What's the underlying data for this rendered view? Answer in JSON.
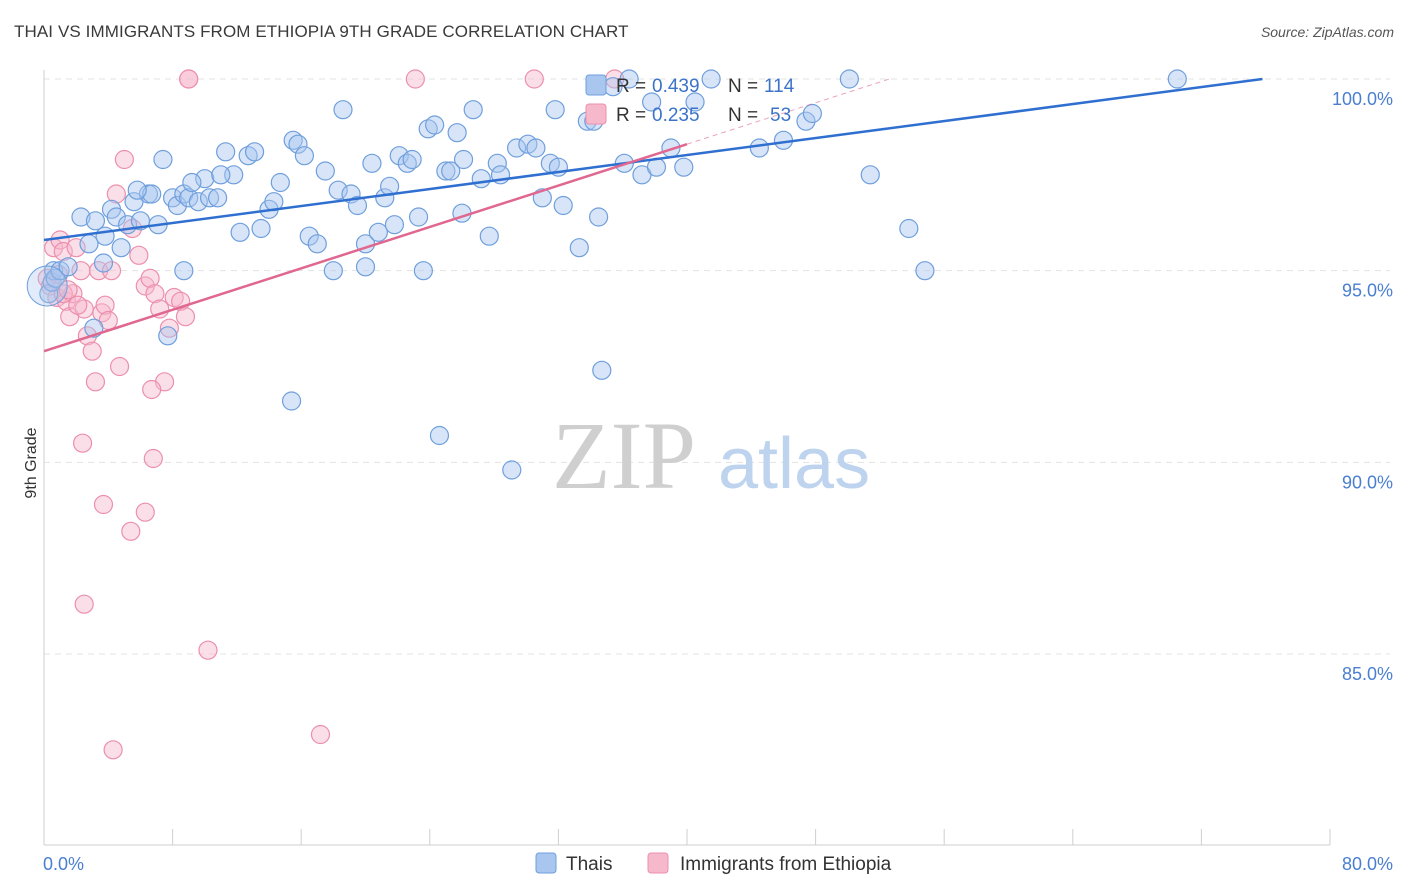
{
  "header": {
    "title": "THAI VS IMMIGRANTS FROM ETHIOPIA 9TH GRADE CORRELATION CHART",
    "source": "Source: ZipAtlas.com"
  },
  "watermark": {
    "zip": "ZIP",
    "atlas": "atlas"
  },
  "colors": {
    "blue_fill": "#a9c6ef",
    "blue_stroke": "#6f9fdc",
    "blue_line": "#2f6fd0",
    "pink_fill": "#f6b9cc",
    "pink_stroke": "#ec8fad",
    "pink_line": "#e06890",
    "grid": "#e3e3e3",
    "tick_label": "#4a7fd0"
  },
  "legend": {
    "rows": [
      {
        "r_label": "R = ",
        "r_value": "0.439",
        "n_label": "N = ",
        "n_value": "114"
      },
      {
        "r_label": "R = ",
        "r_value": "0.235",
        "n_label": "N = ",
        "n_value": "53"
      }
    ]
  },
  "bottom_legend": {
    "thais": "Thais",
    "ethiopia": "Immigrants from Ethiopia"
  },
  "chart_data": {
    "type": "scatter",
    "title": "THAI VS IMMIGRANTS FROM ETHIOPIA 9TH GRADE CORRELATION CHART",
    "xlabel": "",
    "ylabel": "9th Grade",
    "xlim": [
      0,
      80
    ],
    "ylim": [
      80,
      100.5
    ],
    "x_tick_labels": [
      "0.0%",
      "80.0%"
    ],
    "y_ticks": [
      85,
      90,
      95,
      100
    ],
    "y_tick_labels": [
      "85.0%",
      "90.0%",
      "95.0%",
      "100.0%"
    ],
    "grid": true,
    "legend_position": "top-center",
    "series": [
      {
        "name": "Thais",
        "R": 0.439,
        "N": 114,
        "trend": {
          "x": [
            0,
            75.8
          ],
          "y": [
            95.8,
            100.0
          ]
        },
        "points": [
          [
            0.3,
            94.4
          ],
          [
            0.5,
            94.7
          ],
          [
            0.6,
            95.0
          ],
          [
            0.7,
            94.8
          ],
          [
            1.0,
            95.0
          ],
          [
            1.5,
            95.1
          ],
          [
            2.3,
            96.4
          ],
          [
            2.8,
            95.7
          ],
          [
            3.2,
            96.3
          ],
          [
            3.8,
            95.9
          ],
          [
            4.2,
            96.6
          ],
          [
            4.5,
            96.4
          ],
          [
            4.8,
            95.6
          ],
          [
            5.2,
            96.2
          ],
          [
            5.6,
            96.8
          ],
          [
            6.0,
            96.3
          ],
          [
            6.5,
            97.0
          ],
          [
            6.7,
            97.0
          ],
          [
            7.1,
            96.2
          ],
          [
            7.4,
            97.9
          ],
          [
            8.0,
            96.9
          ],
          [
            8.3,
            96.7
          ],
          [
            8.7,
            97.0
          ],
          [
            9.0,
            96.9
          ],
          [
            9.6,
            96.8
          ],
          [
            10.0,
            97.4
          ],
          [
            10.3,
            96.9
          ],
          [
            10.8,
            96.9
          ],
          [
            11.3,
            98.1
          ],
          [
            11.8,
            97.5
          ],
          [
            12.2,
            96.0
          ],
          [
            12.7,
            98.0
          ],
          [
            13.1,
            98.1
          ],
          [
            13.5,
            96.1
          ],
          [
            14.0,
            96.6
          ],
          [
            14.3,
            96.8
          ],
          [
            14.7,
            97.3
          ],
          [
            15.5,
            98.4
          ],
          [
            15.8,
            98.3
          ],
          [
            16.2,
            98.0
          ],
          [
            16.5,
            95.9
          ],
          [
            17.0,
            95.7
          ],
          [
            17.5,
            97.6
          ],
          [
            18.0,
            95.0
          ],
          [
            18.3,
            97.1
          ],
          [
            18.6,
            99.2
          ],
          [
            19.1,
            97.0
          ],
          [
            19.5,
            96.7
          ],
          [
            20.0,
            95.7
          ],
          [
            20.4,
            97.8
          ],
          [
            20.8,
            96.0
          ],
          [
            21.2,
            96.9
          ],
          [
            21.5,
            97.2
          ],
          [
            21.8,
            96.2
          ],
          [
            22.1,
            98.0
          ],
          [
            22.6,
            97.8
          ],
          [
            22.9,
            97.9
          ],
          [
            23.3,
            96.4
          ],
          [
            23.6,
            95.0
          ],
          [
            23.9,
            98.7
          ],
          [
            24.3,
            98.8
          ],
          [
            25.0,
            97.6
          ],
          [
            25.3,
            97.6
          ],
          [
            25.7,
            98.6
          ],
          [
            26.1,
            97.9
          ],
          [
            26.7,
            99.2
          ],
          [
            27.2,
            97.4
          ],
          [
            27.7,
            95.9
          ],
          [
            28.2,
            97.8
          ],
          [
            28.4,
            97.5
          ],
          [
            29.4,
            98.2
          ],
          [
            30.1,
            98.3
          ],
          [
            30.6,
            98.2
          ],
          [
            31.0,
            96.9
          ],
          [
            31.5,
            97.8
          ],
          [
            32.0,
            97.7
          ],
          [
            32.3,
            96.7
          ],
          [
            33.3,
            95.6
          ],
          [
            33.8,
            98.9
          ],
          [
            34.2,
            98.9
          ],
          [
            34.5,
            96.4
          ],
          [
            35.4,
            99.8
          ],
          [
            36.1,
            97.8
          ],
          [
            36.4,
            100.0
          ],
          [
            37.2,
            97.5
          ],
          [
            37.8,
            99.4
          ],
          [
            38.1,
            97.7
          ],
          [
            39.0,
            98.2
          ],
          [
            39.8,
            97.7
          ],
          [
            40.5,
            99.4
          ],
          [
            41.5,
            100.0
          ],
          [
            44.5,
            98.2
          ],
          [
            46.0,
            98.4
          ],
          [
            47.4,
            98.9
          ],
          [
            47.8,
            99.1
          ],
          [
            50.1,
            100.0
          ],
          [
            51.4,
            97.5
          ],
          [
            53.8,
            96.1
          ],
          [
            54.8,
            95.0
          ],
          [
            70.5,
            100.0
          ],
          [
            3.1,
            93.5
          ],
          [
            7.7,
            93.3
          ],
          [
            8.7,
            95.0
          ],
          [
            15.4,
            91.6
          ],
          [
            24.6,
            90.7
          ],
          [
            29.1,
            89.8
          ],
          [
            34.7,
            92.4
          ],
          [
            20.0,
            95.1
          ],
          [
            11.0,
            97.5
          ],
          [
            26.0,
            96.5
          ],
          [
            31.8,
            99.2
          ],
          [
            5.8,
            97.1
          ],
          [
            3.7,
            95.2
          ],
          [
            9.2,
            97.3
          ]
        ]
      },
      {
        "name": "Immigrants from Ethiopia",
        "R": 0.235,
        "N": 53,
        "trend": {
          "x": [
            0,
            40
          ],
          "y": [
            92.9,
            98.3
          ]
        },
        "points": [
          [
            0.2,
            94.8
          ],
          [
            0.4,
            94.6
          ],
          [
            0.6,
            95.6
          ],
          [
            0.8,
            94.3
          ],
          [
            1.0,
            95.8
          ],
          [
            1.2,
            95.5
          ],
          [
            1.4,
            94.2
          ],
          [
            1.6,
            93.8
          ],
          [
            1.8,
            94.4
          ],
          [
            2.0,
            95.6
          ],
          [
            2.3,
            95.0
          ],
          [
            2.5,
            94.0
          ],
          [
            2.7,
            93.3
          ],
          [
            3.0,
            92.9
          ],
          [
            3.2,
            92.1
          ],
          [
            3.4,
            95.0
          ],
          [
            3.6,
            93.9
          ],
          [
            3.8,
            94.1
          ],
          [
            4.0,
            93.7
          ],
          [
            4.2,
            95.0
          ],
          [
            4.5,
            97.0
          ],
          [
            4.7,
            92.5
          ],
          [
            5.0,
            97.9
          ],
          [
            5.5,
            96.1
          ],
          [
            5.9,
            95.4
          ],
          [
            6.3,
            94.6
          ],
          [
            6.6,
            94.8
          ],
          [
            6.9,
            94.4
          ],
          [
            7.2,
            94.0
          ],
          [
            7.5,
            92.1
          ],
          [
            7.8,
            93.5
          ],
          [
            8.1,
            94.3
          ],
          [
            8.5,
            94.2
          ],
          [
            8.8,
            93.8
          ],
          [
            9.0,
            100.0
          ],
          [
            9.0,
            100.0
          ],
          [
            2.4,
            90.5
          ],
          [
            3.7,
            88.9
          ],
          [
            5.4,
            88.2
          ],
          [
            6.3,
            88.7
          ],
          [
            6.8,
            90.1
          ],
          [
            2.5,
            86.3
          ],
          [
            10.2,
            85.1
          ],
          [
            4.3,
            82.5
          ],
          [
            17.2,
            82.9
          ],
          [
            23.1,
            100.0
          ],
          [
            30.5,
            100.0
          ],
          [
            35.5,
            100.0
          ],
          [
            6.7,
            91.9
          ],
          [
            1.2,
            94.4
          ],
          [
            0.9,
            94.9
          ],
          [
            1.5,
            94.5
          ],
          [
            2.1,
            94.1
          ]
        ]
      }
    ]
  }
}
